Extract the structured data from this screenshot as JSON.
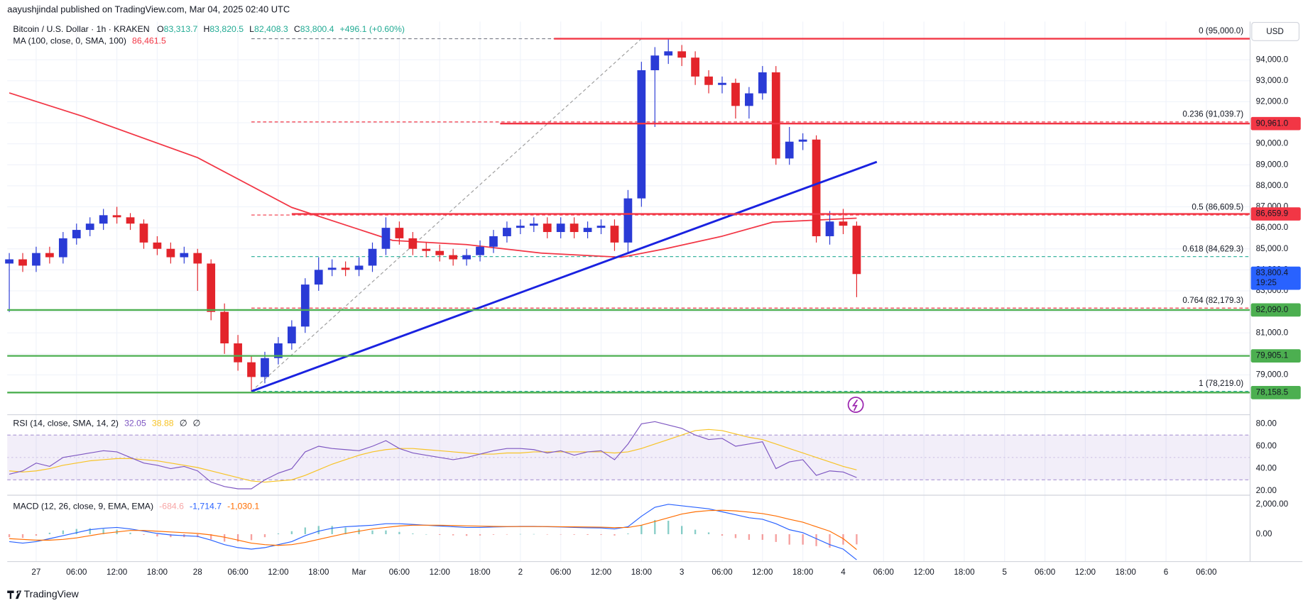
{
  "header": {
    "published": "aayushjindal published on TradingView.com, Mar 04, 2025 02:40 UTC",
    "currency": "USD",
    "brand": "TradingView"
  },
  "chart_data": [
    {
      "type": "candlestick",
      "title": "Bitcoin / U.S. Dollar · 1h · KRAKEN",
      "ohlc_legend": [
        {
          "key": "O",
          "text": "83,313.7"
        },
        {
          "key": "H",
          "text": "83,820.5"
        },
        {
          "key": "L",
          "text": "82,408.3"
        },
        {
          "key": "C",
          "text": "83,800.4"
        }
      ],
      "change": "+496.1 (+0.60%)",
      "x": [
        -4,
        -2,
        0,
        2,
        4,
        6,
        8,
        10,
        12,
        14,
        16,
        18,
        20,
        22,
        24,
        26,
        28,
        30,
        32,
        34,
        36,
        38,
        40,
        42,
        44,
        46,
        48,
        50,
        52,
        54,
        56,
        58,
        60,
        62,
        64,
        66,
        68,
        70,
        72,
        74,
        76,
        78,
        80,
        82,
        84,
        86,
        88,
        90,
        92,
        94,
        96,
        98,
        100,
        102,
        104,
        106,
        108,
        110,
        112,
        114,
        116,
        118,
        120,
        122
      ],
      "open": [
        84300,
        84500,
        84200,
        84800,
        84600,
        85500,
        85900,
        86200,
        86600,
        86500,
        86200,
        85300,
        85000,
        84600,
        84800,
        84300,
        82000,
        80500,
        79600,
        78900,
        79800,
        80500,
        81300,
        83300,
        84000,
        84100,
        84000,
        84200,
        85000,
        86000,
        85500,
        85000,
        84900,
        84700,
        84500,
        84700,
        85100,
        85600,
        86000,
        86100,
        86200,
        85800,
        86200,
        85800,
        86000,
        86100,
        85300,
        87400,
        93500,
        94200,
        94400,
        94100,
        93200,
        92800,
        92900,
        91800,
        92400,
        93400,
        89300,
        90100,
        90200,
        85600,
        86300,
        86100
      ],
      "high": [
        84800,
        84800,
        85100,
        85100,
        85800,
        86200,
        86500,
        86900,
        87000,
        86700,
        86400,
        85600,
        85300,
        85100,
        85000,
        84500,
        82400,
        80900,
        79900,
        80100,
        80800,
        81600,
        83600,
        84600,
        84500,
        84400,
        84600,
        85300,
        86500,
        86300,
        85800,
        85300,
        85200,
        85000,
        85000,
        85400,
        85900,
        86300,
        86400,
        86500,
        86500,
        86500,
        86500,
        86300,
        86400,
        86400,
        87800,
        93900,
        94600,
        95000,
        94700,
        94400,
        93500,
        93200,
        93100,
        92700,
        93700,
        93700,
        90800,
        90500,
        90400,
        86800,
        86900,
        86300
      ],
      "low": [
        82000,
        83900,
        83900,
        84300,
        84300,
        85200,
        85600,
        85900,
        86200,
        85900,
        85000,
        84700,
        84300,
        84300,
        83000,
        81600,
        80000,
        79200,
        78220,
        78600,
        79500,
        80200,
        81000,
        83000,
        83700,
        83700,
        83700,
        83900,
        84700,
        85200,
        84700,
        84600,
        84400,
        84200,
        84200,
        84400,
        84800,
        85300,
        85700,
        85800,
        85500,
        85500,
        85500,
        85500,
        85700,
        84900,
        84800,
        87000,
        90800,
        93800,
        93700,
        92800,
        92400,
        92400,
        91200,
        91200,
        92100,
        89000,
        89000,
        89700,
        85300,
        85200,
        85700,
        82700
      ],
      "close": [
        84500,
        84200,
        84800,
        84600,
        85500,
        85900,
        86200,
        86600,
        86500,
        86200,
        85300,
        85000,
        84600,
        84800,
        84300,
        82000,
        80500,
        79600,
        78900,
        79800,
        80500,
        81300,
        83300,
        84000,
        84100,
        84000,
        84200,
        85000,
        86000,
        85500,
        85000,
        84900,
        84700,
        84500,
        84700,
        85100,
        85600,
        86000,
        86100,
        86200,
        85800,
        86200,
        85800,
        86000,
        86100,
        85300,
        87400,
        93500,
        94200,
        94400,
        94100,
        93200,
        92800,
        92900,
        91800,
        92400,
        93400,
        89300,
        90100,
        90200,
        85600,
        86300,
        86100,
        83800
      ],
      "up_color": "#2a3bd6",
      "down_color": "#e3242b",
      "xlim": [
        -4.3,
        180.5
      ],
      "xticks": [
        {
          "value": 0,
          "label": "27"
        },
        {
          "value": 6,
          "label": "06:00"
        },
        {
          "value": 12,
          "label": "12:00"
        },
        {
          "value": 18,
          "label": "18:00"
        },
        {
          "value": 24,
          "label": "28"
        },
        {
          "value": 30,
          "label": "06:00"
        },
        {
          "value": 36,
          "label": "12:00"
        },
        {
          "value": 42,
          "label": "18:00"
        },
        {
          "value": 48,
          "label": "Mar"
        },
        {
          "value": 54,
          "label": "06:00"
        },
        {
          "value": 60,
          "label": "12:00"
        },
        {
          "value": 66,
          "label": "18:00"
        },
        {
          "value": 72,
          "label": "2"
        },
        {
          "value": 78,
          "label": "06:00"
        },
        {
          "value": 84,
          "label": "12:00"
        },
        {
          "value": 90,
          "label": "18:00"
        },
        {
          "value": 96,
          "label": "3"
        },
        {
          "value": 102,
          "label": "06:00"
        },
        {
          "value": 108,
          "label": "12:00"
        },
        {
          "value": 114,
          "label": "18:00"
        },
        {
          "value": 120,
          "label": "4"
        },
        {
          "value": 126,
          "label": "06:00"
        },
        {
          "value": 132,
          "label": "12:00"
        },
        {
          "value": 138,
          "label": "18:00"
        },
        {
          "value": 144,
          "label": "5"
        },
        {
          "value": 150,
          "label": "06:00"
        },
        {
          "value": 156,
          "label": "12:00"
        },
        {
          "value": 162,
          "label": "18:00"
        },
        {
          "value": 168,
          "label": "6"
        },
        {
          "value": 174,
          "label": "06:00"
        }
      ],
      "ylim": [
        77104,
        95737
      ],
      "yticks": [
        {
          "value": 79000,
          "label": "79,000.0"
        },
        {
          "value": 80000,
          "label": "80,000.0"
        },
        {
          "value": 81000,
          "label": "81,000.0"
        },
        {
          "value": 82000,
          "label": "82,000.0"
        },
        {
          "value": 83000,
          "label": "83,000.0"
        },
        {
          "value": 84000,
          "label": "84,000.0"
        },
        {
          "value": 85000,
          "label": "85,000.0"
        },
        {
          "value": 86000,
          "label": "86,000.0"
        },
        {
          "value": 87000,
          "label": "87,000.0"
        },
        {
          "value": 88000,
          "label": "88,000.0"
        },
        {
          "value": 89000,
          "label": "89,000.0"
        },
        {
          "value": 90000,
          "label": "90,000.0"
        },
        {
          "value": 91000,
          "label": "91,000.0"
        },
        {
          "value": 92000,
          "label": "92,000.0"
        },
        {
          "value": 93000,
          "label": "93,000.0"
        },
        {
          "value": 94000,
          "label": "94,000.0"
        }
      ],
      "grid": true,
      "series": [
        {
          "name": "MA (100, close, 0, SMA, 100)",
          "value_text": "86,461.5",
          "color": "#f23645",
          "x": [
            -4,
            7,
            24,
            38,
            53,
            64,
            75,
            87,
            93.5,
            102,
            109.5,
            122
          ],
          "values": [
            92420,
            91300,
            89340,
            86970,
            85400,
            85200,
            84800,
            84600,
            85000,
            85600,
            86270,
            86460
          ]
        }
      ],
      "trendline": {
        "color": "#1a22e0",
        "x": [
          32,
          125
        ],
        "values": [
          78219,
          89140
        ]
      },
      "fib": {
        "color": "#9e9e9e",
        "x": [
          32,
          90
        ],
        "values": [
          78219,
          95000
        ],
        "levels": [
          {
            "value": 95000,
            "label": "0 (95,000.0)",
            "color": "#787b86"
          },
          {
            "value": 91039.7,
            "label": "0.236 (91,039.7)",
            "color": "#f23645"
          },
          {
            "value": 86609.5,
            "label": "0.5 (86,609.5)",
            "color": "#f23645"
          },
          {
            "value": 84629.3,
            "label": "0.618 (84,629.3)",
            "color": "#22ab94"
          },
          {
            "value": 82179.3,
            "label": "0.764 (82,179.3)",
            "color": "#f23645"
          },
          {
            "value": 78219,
            "label": "1 (78,219.0)",
            "color": "#22ab94"
          }
        ]
      },
      "levels": [
        {
          "value": 95000,
          "x_start": 77,
          "color": "#f23645"
        },
        {
          "value": 90961,
          "label": "90,961.0",
          "x_start": 69,
          "color": "#f23645"
        },
        {
          "value": 86659.9,
          "label": "86,659.9",
          "x_start": 38,
          "color": "#f23645"
        },
        {
          "value": 82090,
          "label": "82,090.0",
          "x_start": -4.3,
          "color": "#4caf50"
        },
        {
          "value": 79905.1,
          "label": "79,905.1",
          "x_start": -4.3,
          "color": "#4caf50"
        },
        {
          "value": 78158.5,
          "label": "78,158.5",
          "x_start": -4.3,
          "color": "#4caf50"
        }
      ],
      "last_price": {
        "value": 83800.4,
        "label": "83,800.4",
        "countdown": "19:25",
        "color": "#2962ff"
      }
    },
    {
      "type": "line",
      "title": "RSI (14, close, SMA, 14, 2)",
      "extra": [
        "∅",
        "∅"
      ],
      "ylim": [
        16.3,
        88.15
      ],
      "yticks": [
        {
          "value": 20,
          "label": "20.00"
        },
        {
          "value": 40,
          "label": "40.00"
        },
        {
          "value": 60,
          "label": "60.00"
        },
        {
          "value": 80,
          "label": "80.00"
        }
      ],
      "band": [
        30,
        70
      ],
      "midline": 50,
      "band_color": "#7e57c2",
      "series": [
        {
          "color": "#7e57c2",
          "values": [
            35,
            38,
            45,
            42,
            50,
            52,
            54,
            56,
            55,
            50,
            45,
            43,
            40,
            42,
            38,
            28,
            24,
            22,
            22,
            30,
            36,
            40,
            55,
            60,
            58,
            57,
            56,
            60,
            65,
            58,
            54,
            52,
            50,
            48,
            50,
            53,
            56,
            58,
            58,
            57,
            54,
            56,
            52,
            55,
            56,
            48,
            62,
            80,
            82,
            79,
            76,
            70,
            66,
            67,
            60,
            62,
            64,
            40,
            46,
            48,
            34,
            38,
            37,
            32.05
          ]
        },
        {
          "color": "#f7c325",
          "values": [
            38,
            37,
            38,
            40,
            43,
            45,
            47,
            48,
            49,
            49,
            48,
            47,
            45,
            43,
            41,
            38,
            35,
            32,
            29,
            28,
            29,
            30,
            34,
            39,
            44,
            48,
            52,
            55,
            57,
            58,
            58,
            57,
            56,
            55,
            54,
            53,
            53,
            54,
            54,
            55,
            55,
            55,
            55,
            55,
            55,
            54,
            55,
            58,
            62,
            66,
            70,
            74,
            75,
            74,
            71,
            68,
            66,
            62,
            58,
            54,
            50,
            46,
            42,
            38.88
          ]
        }
      ]
    },
    {
      "type": "macd",
      "title": "MACD (12, 26, close, 9, EMA, EMA)",
      "ylim": [
        -1833,
        2611
      ],
      "yticks": [
        {
          "value": 0,
          "label": "0.00"
        },
        {
          "value": 2000,
          "label": "2,000.00"
        }
      ],
      "histogram": {
        "up_color": "#26a69a",
        "down_color": "#ef5350",
        "values": [
          -200,
          -250,
          -100,
          100,
          250,
          350,
          400,
          350,
          300,
          100,
          -50,
          -150,
          -200,
          -200,
          -200,
          -350,
          -500,
          -500,
          -400,
          -200,
          50,
          200,
          450,
          550,
          550,
          450,
          350,
          250,
          250,
          150,
          50,
          0,
          -50,
          -80,
          -110,
          -90,
          -40,
          -10,
          10,
          10,
          -10,
          -20,
          -40,
          -50,
          -50,
          -90,
          50,
          600,
          950,
          900,
          550,
          300,
          120,
          -100,
          -260,
          -380,
          -380,
          -520,
          -700,
          -700,
          -800,
          -900,
          -700,
          -684.6
        ]
      },
      "series": [
        {
          "color": "#2962ff",
          "value_text": "-1,714.7",
          "values": [
            -500,
            -600,
            -500,
            -300,
            -100,
            100,
            300,
            400,
            450,
            350,
            200,
            50,
            -50,
            -100,
            -150,
            -400,
            -700,
            -900,
            -1000,
            -900,
            -700,
            -500,
            -100,
            200,
            400,
            500,
            550,
            600,
            700,
            700,
            650,
            600,
            550,
            500,
            450,
            450,
            480,
            500,
            520,
            520,
            500,
            480,
            450,
            430,
            420,
            350,
            500,
            1200,
            1800,
            2000,
            1900,
            1800,
            1700,
            1500,
            1300,
            1100,
            1000,
            700,
            300,
            100,
            -300,
            -700,
            -1000,
            -1714.7
          ]
        },
        {
          "color": "#ff6d00",
          "value_text": "-1,030.1",
          "values": [
            -300,
            -350,
            -400,
            -400,
            -350,
            -250,
            -100,
            50,
            150,
            250,
            250,
            200,
            150,
            100,
            50,
            -50,
            -200,
            -400,
            -600,
            -700,
            -750,
            -700,
            -550,
            -350,
            -150,
            50,
            200,
            350,
            450,
            550,
            600,
            600,
            600,
            580,
            560,
            540,
            520,
            510,
            510,
            510,
            510,
            500,
            490,
            480,
            470,
            440,
            450,
            600,
            850,
            1100,
            1350,
            1500,
            1580,
            1600,
            1560,
            1480,
            1380,
            1220,
            1000,
            800,
            500,
            200,
            -300,
            -1030.1
          ]
        }
      ]
    }
  ]
}
